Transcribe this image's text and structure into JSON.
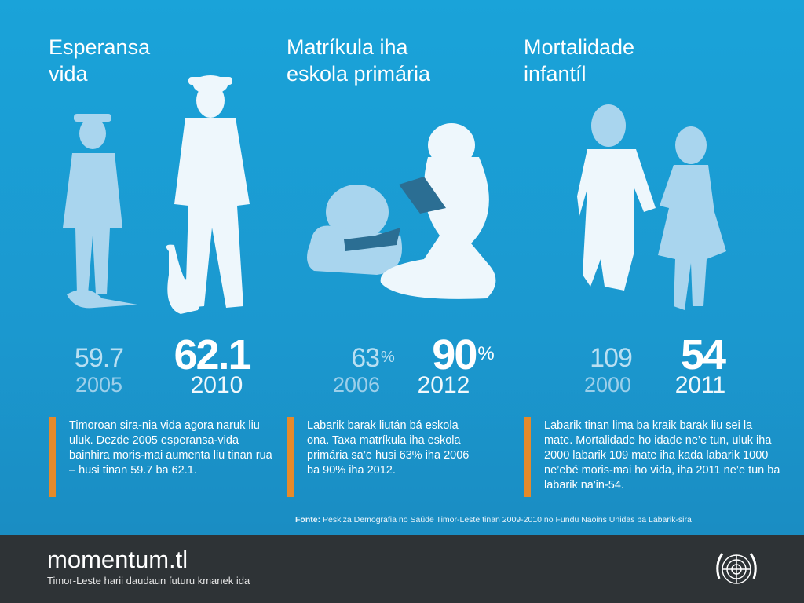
{
  "panels": [
    {
      "title": [
        "Esperansa",
        "vida"
      ],
      "before": {
        "value": 59.7,
        "year": "2005"
      },
      "after": {
        "value": 62.1,
        "year": "2010"
      },
      "text": "Timoroan sira-nia vida agora naruk liu uluk. Dezde 2005 esperansa-vida bainhira moris-mai aumenta liu tinan rua – husi tinan 59.7 ba 62.1."
    },
    {
      "title": [
        "Matríkula iha",
        "eskola primária"
      ],
      "before": {
        "value": 63,
        "unit": "%",
        "year": "2006"
      },
      "after": {
        "value": 90,
        "unit": "%",
        "year": "2012"
      },
      "text": "Labarik barak liután bá eskola ona. Taxa matríkula iha eskola primária sa’e husi 63% iha 2006 ba 90% iha 2012."
    },
    {
      "title": [
        "Mortalidade",
        "infantíl"
      ],
      "before": {
        "value": 109,
        "year": "2000"
      },
      "after": {
        "value": 54,
        "year": "2011"
      },
      "text": "Labarik tinan lima ba kraik barak liu sei la mate. Mortalidade ho idade ne’e tun, uluk iha 2000 labarik 109 mate iha kada labarik 1000 ne’ebé moris-mai ho vida, iha 2011 ne’e tun ba labarik na'in-54."
    }
  ],
  "source": {
    "label": "Fonte:",
    "text": "Peskiza Demografia no Saúde Timor-Leste tinan 2009-2010 no Fundu Naoins Unidas ba Labarik-sira"
  },
  "footer": {
    "brand": "momentum.tl",
    "tagline": "Timor-Leste harii daudaun futuru kmanek ida"
  }
}
